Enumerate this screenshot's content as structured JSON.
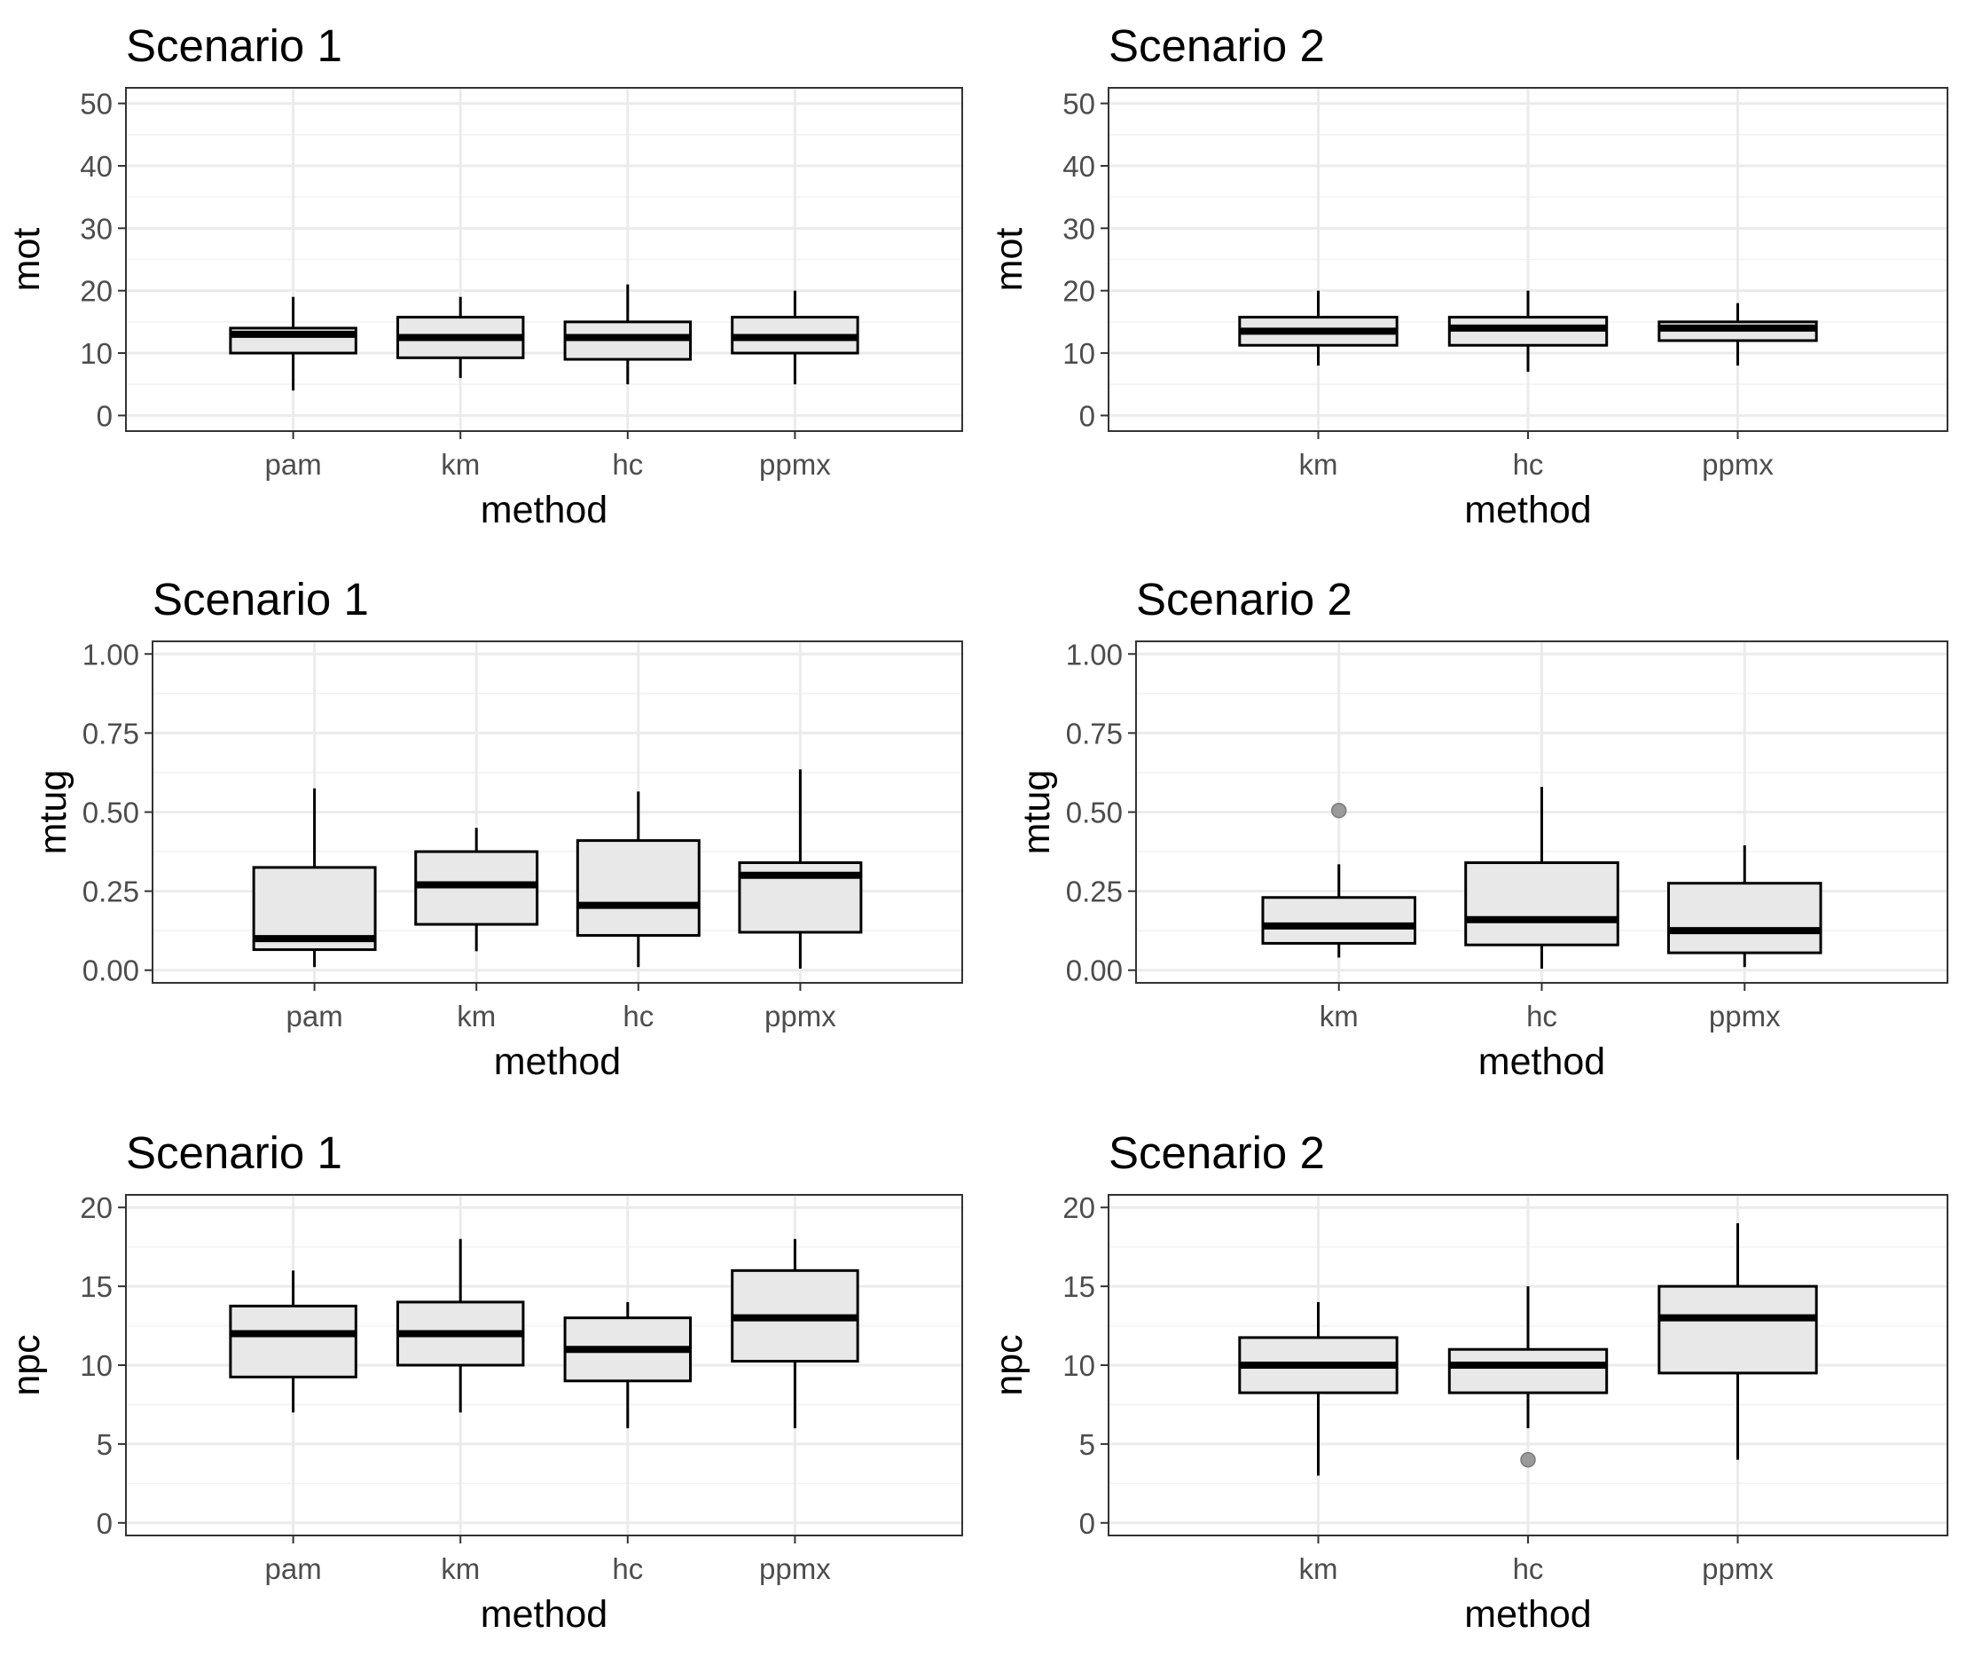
{
  "chart_data": [
    {
      "type": "boxplot",
      "title": "Scenario 1",
      "xlabel": "method",
      "ylabel": "mot",
      "ylim": [
        -2.5,
        52.5
      ],
      "yticks": [
        "0",
        "10",
        "20",
        "30",
        "40",
        "50"
      ],
      "categories": [
        "pam",
        "km",
        "hc",
        "ppmx"
      ],
      "boxes": [
        {
          "q1": 10,
          "median": 13,
          "q3": 14,
          "whisker_low": 4,
          "whisker_high": 19,
          "outliers": []
        },
        {
          "q1": 9.25,
          "median": 12.5,
          "q3": 15.75,
          "whisker_low": 6,
          "whisker_high": 19,
          "outliers": []
        },
        {
          "q1": 9,
          "median": 12.5,
          "q3": 15,
          "whisker_low": 5,
          "whisker_high": 21,
          "outliers": []
        },
        {
          "q1": 10,
          "median": 12.5,
          "q3": 15.75,
          "whisker_low": 5,
          "whisker_high": 20,
          "outliers": []
        }
      ]
    },
    {
      "type": "boxplot",
      "title": "Scenario 2",
      "xlabel": "method",
      "ylabel": "mot",
      "ylim": [
        -2.5,
        52.5
      ],
      "yticks": [
        "0",
        "10",
        "20",
        "30",
        "40",
        "50"
      ],
      "categories": [
        "km",
        "hc",
        "ppmx"
      ],
      "boxes": [
        {
          "q1": 11.25,
          "median": 13.5,
          "q3": 15.75,
          "whisker_low": 8,
          "whisker_high": 20,
          "outliers": []
        },
        {
          "q1": 11.25,
          "median": 14,
          "q3": 15.75,
          "whisker_low": 7,
          "whisker_high": 20,
          "outliers": []
        },
        {
          "q1": 12,
          "median": 14,
          "q3": 15,
          "whisker_low": 8,
          "whisker_high": 18,
          "outliers": []
        }
      ]
    },
    {
      "type": "boxplot",
      "title": "Scenario 1",
      "xlabel": "method",
      "ylabel": "mtug",
      "ylim": [
        -0.04,
        1.04
      ],
      "yticks": [
        "0.00",
        "0.25",
        "0.50",
        "0.75",
        "1.00"
      ],
      "categories": [
        "pam",
        "km",
        "hc",
        "ppmx"
      ],
      "boxes": [
        {
          "q1": 0.065,
          "median": 0.1,
          "q3": 0.325,
          "whisker_low": 0.01,
          "whisker_high": 0.575,
          "outliers": []
        },
        {
          "q1": 0.145,
          "median": 0.27,
          "q3": 0.375,
          "whisker_low": 0.06,
          "whisker_high": 0.45,
          "outliers": []
        },
        {
          "q1": 0.11,
          "median": 0.205,
          "q3": 0.41,
          "whisker_low": 0.01,
          "whisker_high": 0.565,
          "outliers": []
        },
        {
          "q1": 0.12,
          "median": 0.3,
          "q3": 0.34,
          "whisker_low": 0.005,
          "whisker_high": 0.635,
          "outliers": []
        }
      ]
    },
    {
      "type": "boxplot",
      "title": "Scenario 2",
      "xlabel": "method",
      "ylabel": "mtug",
      "ylim": [
        -0.04,
        1.04
      ],
      "yticks": [
        "0.00",
        "0.25",
        "0.50",
        "0.75",
        "1.00"
      ],
      "categories": [
        "km",
        "hc",
        "ppmx"
      ],
      "boxes": [
        {
          "q1": 0.085,
          "median": 0.14,
          "q3": 0.23,
          "whisker_low": 0.04,
          "whisker_high": 0.335,
          "outliers": [
            0.505
          ]
        },
        {
          "q1": 0.08,
          "median": 0.16,
          "q3": 0.34,
          "whisker_low": 0.005,
          "whisker_high": 0.58,
          "outliers": []
        },
        {
          "q1": 0.055,
          "median": 0.125,
          "q3": 0.275,
          "whisker_low": 0.01,
          "whisker_high": 0.395,
          "outliers": []
        }
      ]
    },
    {
      "type": "boxplot",
      "title": "Scenario 1",
      "xlabel": "method",
      "ylabel": "npc",
      "ylim": [
        -0.8,
        20.8
      ],
      "yticks": [
        "0",
        "5",
        "10",
        "15",
        "20"
      ],
      "categories": [
        "pam",
        "km",
        "hc",
        "ppmx"
      ],
      "boxes": [
        {
          "q1": 9.25,
          "median": 12,
          "q3": 13.75,
          "whisker_low": 7,
          "whisker_high": 16,
          "outliers": []
        },
        {
          "q1": 10,
          "median": 12,
          "q3": 14,
          "whisker_low": 7,
          "whisker_high": 18,
          "outliers": []
        },
        {
          "q1": 9,
          "median": 11,
          "q3": 13,
          "whisker_low": 6,
          "whisker_high": 14,
          "outliers": []
        },
        {
          "q1": 10.25,
          "median": 13,
          "q3": 16,
          "whisker_low": 6,
          "whisker_high": 18,
          "outliers": []
        }
      ]
    },
    {
      "type": "boxplot",
      "title": "Scenario 2",
      "xlabel": "method",
      "ylabel": "npc",
      "ylim": [
        -0.8,
        20.8
      ],
      "yticks": [
        "0",
        "5",
        "10",
        "15",
        "20"
      ],
      "categories": [
        "km",
        "hc",
        "ppmx"
      ],
      "boxes": [
        {
          "q1": 8.25,
          "median": 10,
          "q3": 11.75,
          "whisker_low": 3,
          "whisker_high": 14,
          "outliers": []
        },
        {
          "q1": 8.25,
          "median": 10,
          "q3": 11,
          "whisker_low": 6,
          "whisker_high": 15,
          "outliers": [
            4
          ]
        },
        {
          "q1": 9.5,
          "median": 13,
          "q3": 15,
          "whisker_low": 4,
          "whisker_high": 19,
          "outliers": []
        }
      ]
    }
  ],
  "style": {
    "box_fill": "#e8e8e8",
    "box_stroke": "#000000",
    "panel_border": "#333333",
    "grid_major": "#ebebeb",
    "grid_minor": "#f2f2f2",
    "outlier_fill": "#9a9a9a",
    "tick_label_color": "#4d4d4d"
  }
}
